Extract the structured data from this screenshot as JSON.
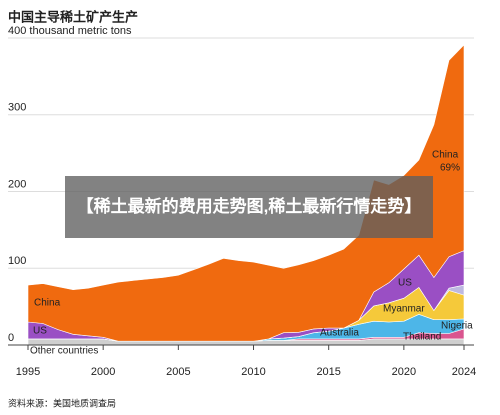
{
  "chart_data": {
    "type": "stacked_area",
    "title": "中国主导稀土矿产生产",
    "source": "资料来源：美国地质调查局",
    "annotation": "69%",
    "x": [
      1995,
      1996,
      1997,
      1998,
      1999,
      2000,
      2001,
      2002,
      2003,
      2004,
      2005,
      2006,
      2007,
      2008,
      2009,
      2010,
      2011,
      2012,
      2013,
      2014,
      2015,
      2016,
      2017,
      2018,
      2019,
      2020,
      2021,
      2022,
      2023,
      2024
    ],
    "xlim": [
      1995,
      2024
    ],
    "xticks": [
      1995,
      2000,
      2005,
      2010,
      2015,
      2020,
      2024
    ],
    "ylim": [
      0,
      400
    ],
    "yticks": [
      0,
      100,
      200,
      300,
      {
        "value": 400,
        "label": "400 thousand metric tons"
      }
    ],
    "grid": true,
    "series": [
      {
        "name": "Other countries",
        "color": "#cfcfcf",
        "values": [
          8,
          8,
          8,
          8,
          8,
          8,
          5,
          5,
          5,
          5,
          5,
          5,
          5,
          5,
          5,
          5,
          6,
          6,
          6,
          6,
          6,
          6,
          6,
          8,
          8,
          8,
          8,
          8,
          8,
          8
        ]
      },
      {
        "name": "Thailand",
        "color": "#d9558f",
        "values": [
          0,
          0,
          0,
          0,
          0,
          0,
          0,
          0,
          0,
          0,
          0,
          0,
          0,
          0,
          0,
          0,
          0,
          0,
          2,
          2,
          2,
          2,
          2,
          2,
          2,
          2,
          8,
          7,
          7,
          13
        ]
      },
      {
        "name": "Australia",
        "color": "#4db6e8",
        "values": [
          0,
          0,
          0,
          0,
          0,
          0,
          0,
          0,
          0,
          0,
          0,
          0,
          0,
          0,
          0,
          0,
          2,
          3,
          3,
          8,
          10,
          14,
          19,
          21,
          20,
          21,
          24,
          18,
          18,
          13
        ]
      },
      {
        "name": "Myanmar",
        "color": "#f5c93a",
        "values": [
          0,
          0,
          0,
          0,
          0,
          0,
          0,
          0,
          0,
          0,
          0,
          0,
          0,
          0,
          0,
          0,
          0,
          0,
          0,
          0,
          0,
          0,
          5,
          20,
          25,
          30,
          35,
          12,
          38,
          31
        ]
      },
      {
        "name": "Nigeria",
        "color": "#bdb8e0",
        "values": [
          0,
          0,
          0,
          0,
          0,
          0,
          0,
          0,
          0,
          0,
          0,
          0,
          0,
          0,
          0,
          0,
          0,
          0,
          0,
          0,
          0,
          0,
          0,
          0,
          0,
          0,
          0,
          0,
          3,
          13
        ]
      },
      {
        "name": "US",
        "color": "#9a4fc4",
        "values": [
          22,
          20,
          12,
          6,
          4,
          2,
          0,
          0,
          0,
          0,
          0,
          0,
          0,
          0,
          0,
          0,
          0,
          7,
          5.5,
          5,
          4,
          0,
          0,
          18,
          26,
          38,
          42,
          43,
          41,
          45
        ]
      },
      {
        "name": "China",
        "color": "#f06a0f",
        "values": [
          48,
          52,
          56,
          58,
          62,
          68,
          77,
          79,
          81,
          83,
          86,
          93,
          100,
          108,
          105,
          103,
          96,
          84,
          88,
          89,
          95,
          103,
          111,
          146,
          128,
          122,
          124,
          199,
          256,
          268
        ]
      }
    ]
  },
  "overlay": {
    "text": "【稀土最新的费用走势图,稀土最新行情走势】"
  }
}
